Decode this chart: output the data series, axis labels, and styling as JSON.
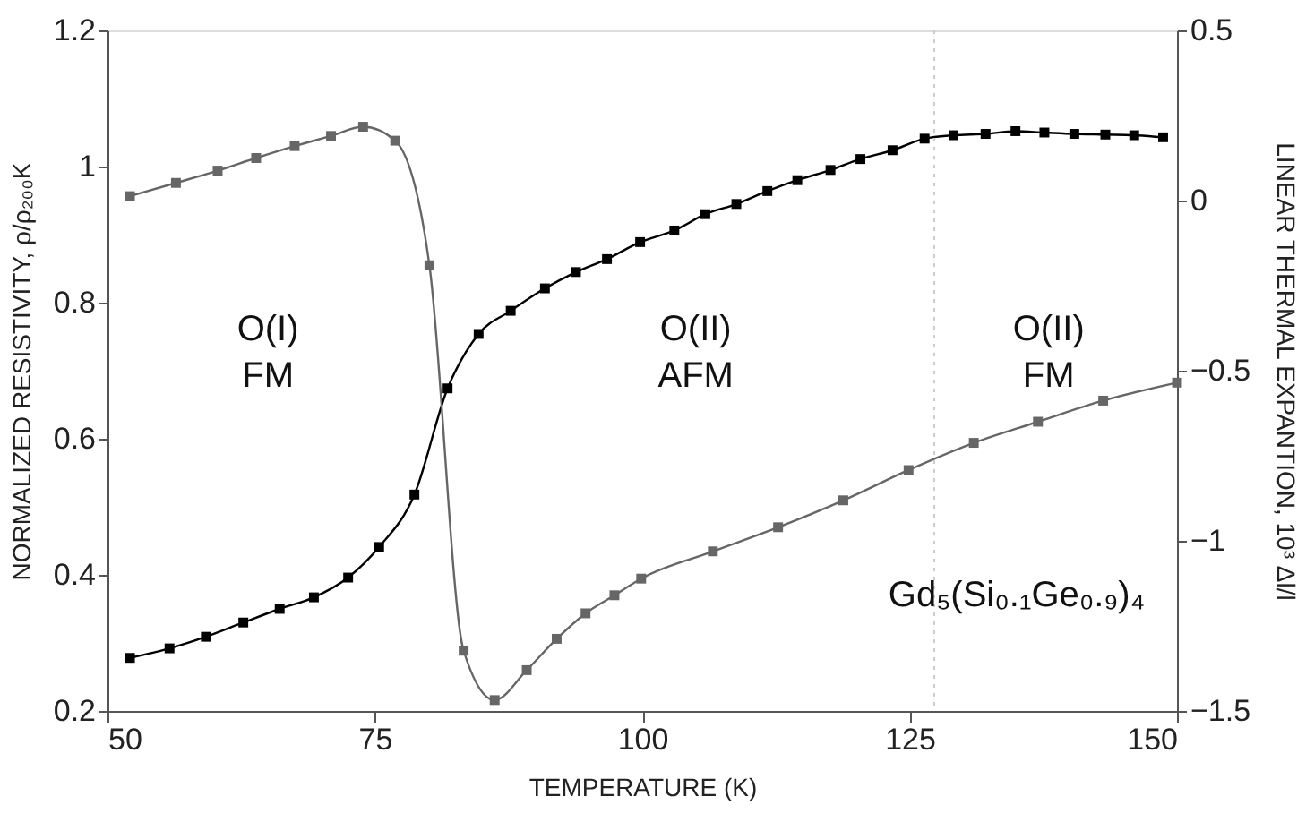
{
  "chart_data": {
    "type": "line",
    "xlabel": "TEMPERATURE (K)",
    "ylabel": "NORMALIZED RESISTIVITY, ρ/ρ₂₀₀K",
    "y2label": "LINEAR THERMAL EXPANTION, 10³ Δl/l",
    "xlim": [
      50,
      150
    ],
    "xticks": [
      50,
      75,
      100,
      125,
      150
    ],
    "ylim": [
      0.2,
      1.2
    ],
    "yticks": [
      0.2,
      0.4,
      0.6,
      0.8,
      1,
      1.2
    ],
    "y2lim": [
      -1.5,
      0.5
    ],
    "y2ticks": [
      {
        "value": -1.5,
        "label": "−1.5"
      },
      {
        "value": -1,
        "label": "−1"
      },
      {
        "value": -0.5,
        "label": "−0.5"
      },
      0,
      0.5
    ],
    "grid": false,
    "marker": "square",
    "line_style": "solid",
    "series": [
      {
        "color": "#000000",
        "x": [
          52.1,
          55.8,
          59.2,
          62.7,
          66.1,
          69.3,
          72.5,
          75.4,
          78.7,
          81.8,
          84.7,
          87.7,
          90.9,
          93.8,
          96.7,
          99.8,
          103.0,
          105.9,
          108.8,
          111.7,
          114.5,
          117.6,
          120.4,
          123.4,
          126.4,
          129.1,
          132.1,
          134.9,
          137.6,
          140.4,
          143.3,
          146.0,
          148.7
        ],
        "values": [
          0.278,
          0.292,
          0.309,
          0.33,
          0.35,
          0.367,
          0.396,
          0.441,
          0.518,
          0.674,
          0.754,
          0.788,
          0.821,
          0.845,
          0.864,
          0.889,
          0.906,
          0.93,
          0.945,
          0.964,
          0.98,
          0.995,
          1.011,
          1.024,
          1.041,
          1.046,
          1.048,
          1.052,
          1.05,
          1.048,
          1.047,
          1.046,
          1.043
        ]
      },
      {
        "color": "#666666",
        "axis": "y2",
        "x": [
          52.1,
          56.4,
          60.3,
          63.9,
          67.5,
          70.9,
          73.9,
          76.9,
          80.1,
          83.3,
          86.2,
          89.2,
          92.0,
          94.7,
          97.4,
          99.9,
          106.6,
          112.7,
          118.8,
          124.9,
          131.0,
          137.0,
          143.1,
          150.0
        ],
        "values": [
          0.013,
          0.052,
          0.088,
          0.125,
          0.16,
          0.19,
          0.217,
          0.176,
          -0.19,
          -1.323,
          -1.468,
          -1.38,
          -1.288,
          -1.213,
          -1.16,
          -1.111,
          -1.031,
          -0.96,
          -0.881,
          -0.792,
          -0.712,
          -0.65,
          -0.588,
          -0.535
        ]
      }
    ],
    "ref_lines": [
      {
        "axis": "x",
        "value": 127.3,
        "color": "#cccccc",
        "line_style": "dotted"
      }
    ],
    "annotations": [
      "O(I)\nFM",
      "O(II)\nAFM",
      "O(II)\nFM",
      "Gd₅(Si₀.₁Ge₀.₉)₄"
    ]
  }
}
